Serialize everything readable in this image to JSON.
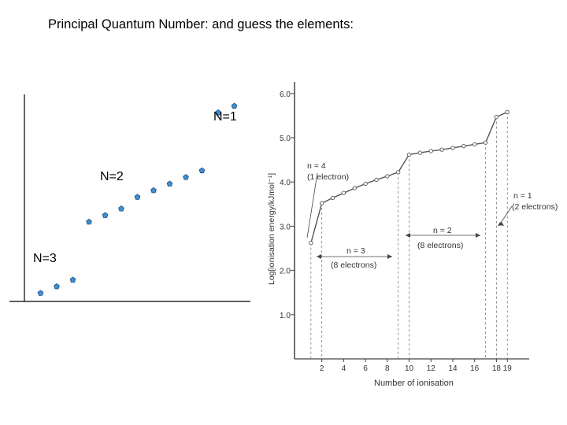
{
  "slide": {
    "title": "Principal Quantum Number: and guess the elements:"
  },
  "chart_data": [
    {
      "type": "scatter",
      "title": "",
      "group_labels": [
        "N=1",
        "N=2",
        "N=3"
      ],
      "colors": {
        "marker": "#3f8fd2",
        "marker_stroke": "#1f4f7f"
      },
      "series": [
        {
          "name": "N=3",
          "points": [
            [
              1,
              0.5
            ],
            [
              2,
              0.9
            ],
            [
              3,
              1.3
            ]
          ]
        },
        {
          "name": "N=2",
          "points": [
            [
              4,
              4.8
            ],
            [
              5,
              5.2
            ],
            [
              6,
              5.6
            ],
            [
              7,
              6.3
            ],
            [
              8,
              6.7
            ],
            [
              9,
              7.1
            ],
            [
              10,
              7.5
            ],
            [
              11,
              7.9
            ]
          ]
        },
        {
          "name": "N=1",
          "points": [
            [
              12,
              11.4
            ],
            [
              13,
              11.8
            ]
          ]
        }
      ],
      "xlim": [
        0,
        14
      ],
      "ylim": [
        0,
        12.5
      ]
    },
    {
      "type": "line",
      "xlabel": "Number of ionisation",
      "ylabel": "Log[ionisation energy/kJmol⁻¹]",
      "xticks": [
        "2",
        "4",
        "6",
        "8",
        "10",
        "12",
        "14",
        "16",
        "18",
        "19"
      ],
      "xtick_values": [
        2,
        4,
        6,
        8,
        10,
        12,
        14,
        16,
        18,
        19
      ],
      "yticks": [
        "1.0",
        "2.0",
        "3.0",
        "4.0",
        "5.0",
        "6.0"
      ],
      "ytick_values": [
        1.0,
        2.0,
        3.0,
        4.0,
        5.0,
        6.0
      ],
      "xlim": [
        -0.5,
        21
      ],
      "ylim": [
        0,
        6.05
      ],
      "x": [
        1,
        2,
        3,
        4,
        5,
        6,
        7,
        8,
        9,
        10,
        11,
        12,
        13,
        14,
        15,
        16,
        17,
        18,
        19
      ],
      "y": [
        2.62,
        3.52,
        3.64,
        3.75,
        3.86,
        3.96,
        4.05,
        4.13,
        4.22,
        4.62,
        4.66,
        4.7,
        4.73,
        4.77,
        4.81,
        4.85,
        4.89,
        5.47,
        5.58
      ],
      "annotations": [
        {
          "line1": "n = 4",
          "line2": "(1 electron)"
        },
        {
          "line1": "n = 3",
          "line2": "(8 electrons)"
        },
        {
          "line1": "n = 2",
          "line2": "(8 electrons)"
        },
        {
          "line1": "n = 1",
          "line2": "(2 electrons)"
        }
      ],
      "colors": {
        "line": "#555555",
        "axis": "#444444",
        "marker": "#888888"
      }
    }
  ]
}
